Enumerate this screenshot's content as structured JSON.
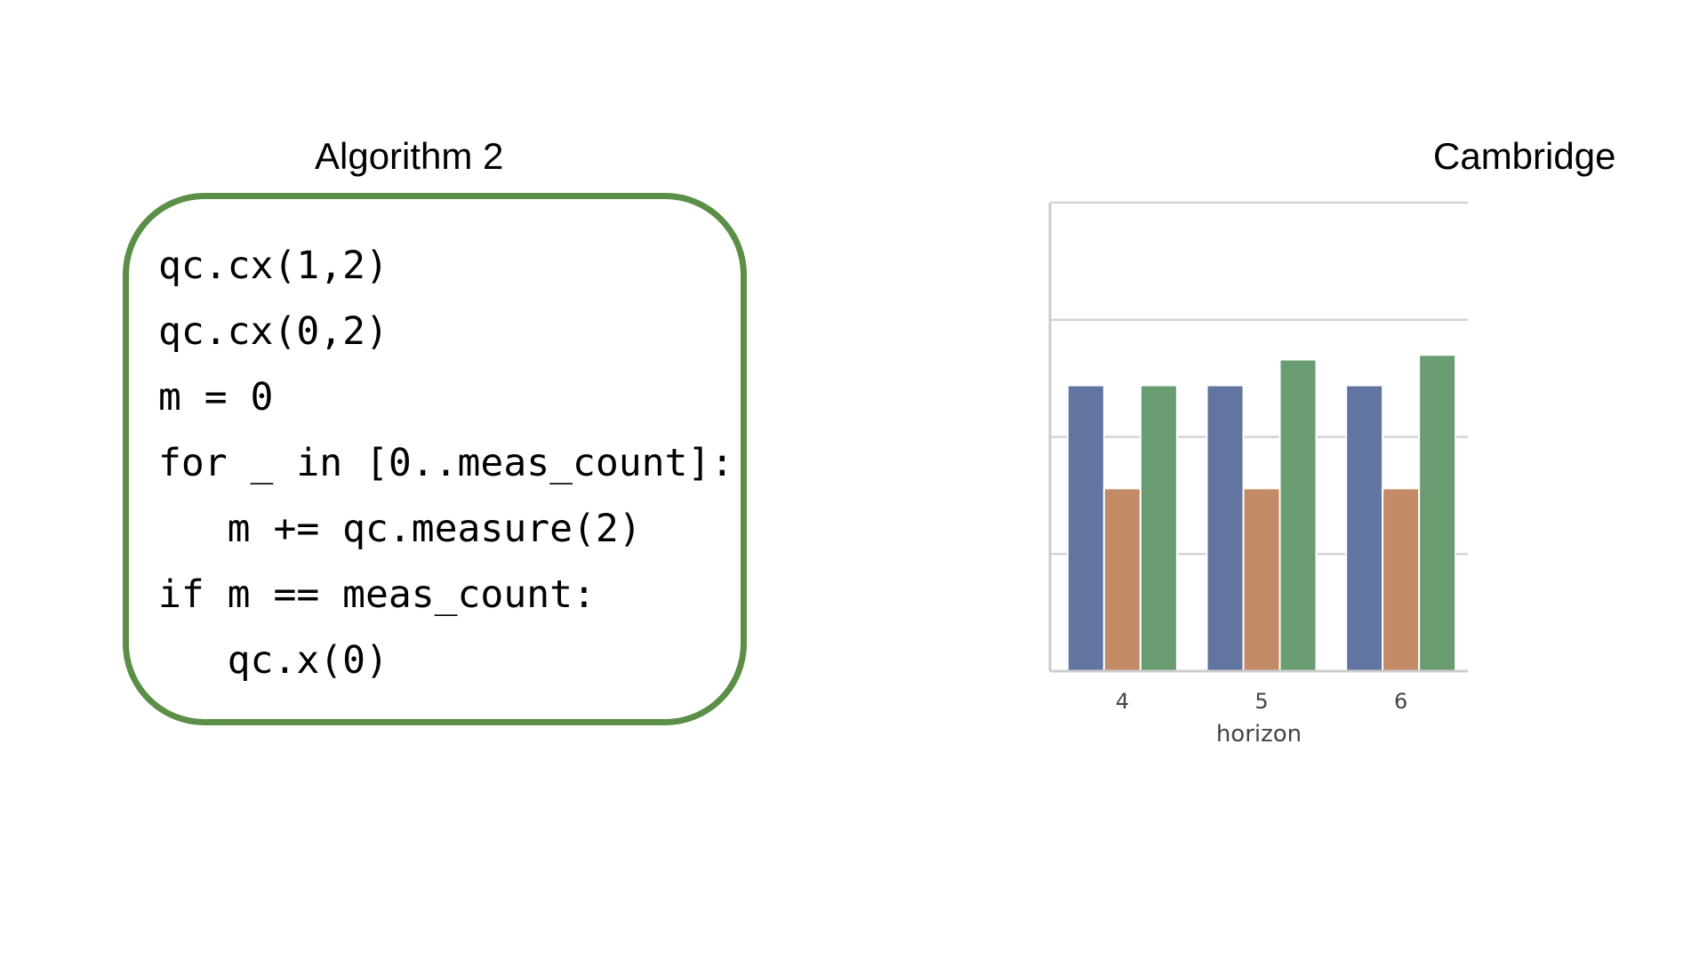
{
  "algorithm": {
    "title": "Algorithm 2",
    "lines": [
      "qc.cx(1,2)",
      "qc.cx(0,2)",
      "m = 0",
      "for _ in [0..meas_count]:",
      "   m += qc.measure(2)",
      "if m == meas_count:",
      "   qc.x(0)"
    ]
  },
  "chart_title": "Cambridge",
  "chart_data": {
    "type": "bar",
    "title": "Cambridge",
    "xlabel": "horizon",
    "ylabel": "",
    "categories": [
      "4",
      "5",
      "6"
    ],
    "ylim": [
      0,
      1.0
    ],
    "grid": true,
    "y_ticks_labeled": false,
    "series": [
      {
        "color": "#6274a0",
        "values": [
          0.61,
          0.61,
          0.61
        ]
      },
      {
        "color": "#c38a66",
        "values": [
          0.39,
          0.39,
          0.39
        ]
      },
      {
        "color": "#6a9c72",
        "values": [
          0.61,
          0.665,
          0.675
        ]
      }
    ]
  }
}
